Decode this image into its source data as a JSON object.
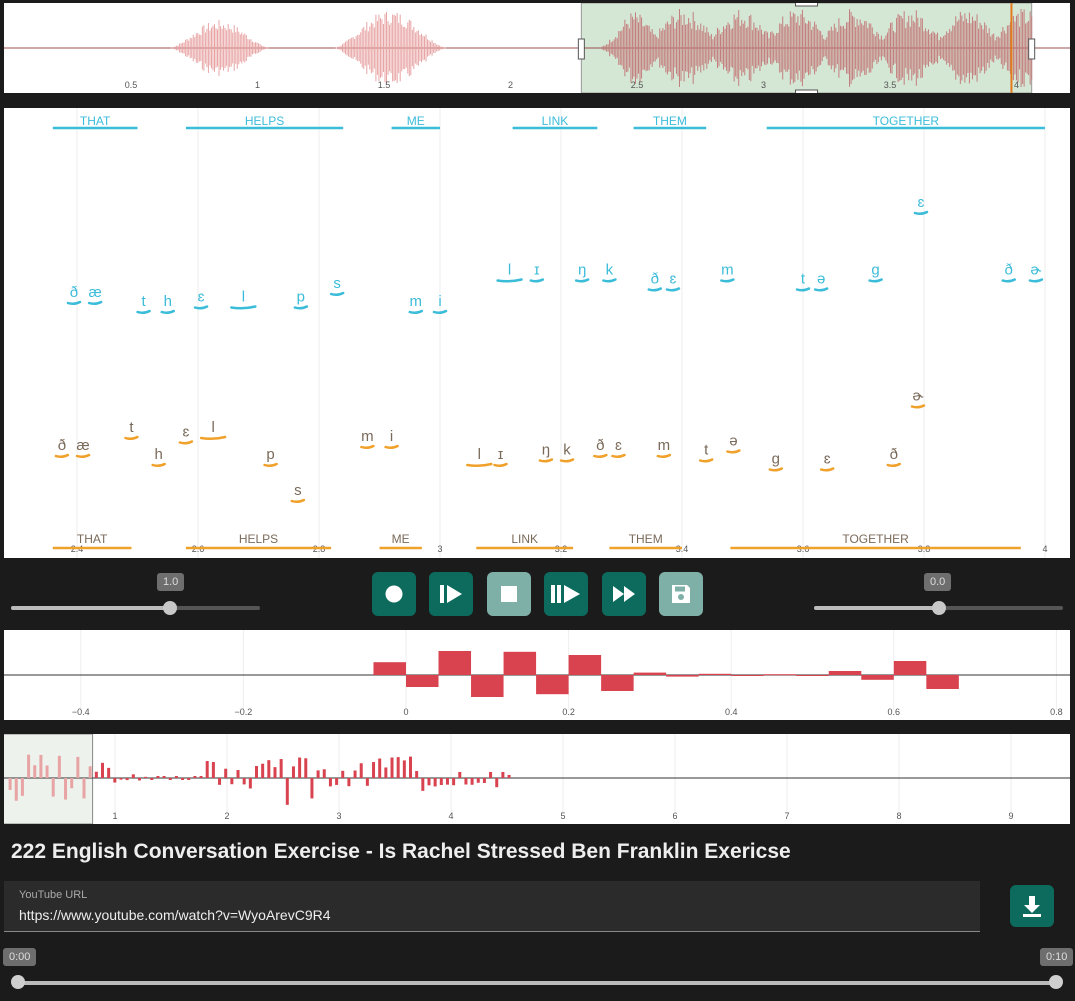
{
  "overview": {
    "ticks": [
      {
        "v": 0.5,
        "label": "0.5"
      },
      {
        "v": 1,
        "label": "1"
      },
      {
        "v": 1.5,
        "label": "1.5"
      },
      {
        "v": 2,
        "label": "2"
      },
      {
        "v": 2.5,
        "label": "2.5"
      },
      {
        "v": 3,
        "label": "3"
      },
      {
        "v": 3.5,
        "label": "3.5"
      },
      {
        "v": 4,
        "label": "4"
      }
    ],
    "selection": [
      2.28,
      4.06
    ],
    "playhead": 3.98,
    "colors": {
      "wave": "#e8a4a4",
      "wave_sel": "#c47e7e",
      "selection": "#d4e6d4",
      "playhead": "#e07a1a"
    }
  },
  "pitch": {
    "x_ticks": [
      {
        "v": 2.4,
        "label": "2.4"
      },
      {
        "v": 2.6,
        "label": "2.6"
      },
      {
        "v": 2.8,
        "label": "2.8"
      },
      {
        "v": 3.0,
        "label": "3"
      },
      {
        "v": 3.2,
        "label": "3.2"
      },
      {
        "v": 3.4,
        "label": "3.4"
      },
      {
        "v": 3.6,
        "label": "3.6"
      },
      {
        "v": 3.8,
        "label": "3.8"
      },
      {
        "v": 4.0,
        "label": "4"
      }
    ],
    "reference_words": [
      {
        "text": "THAT",
        "from": 2.36,
        "to": 2.5
      },
      {
        "text": "HELPS",
        "from": 2.58,
        "to": 2.84
      },
      {
        "text": "ME",
        "from": 2.92,
        "to": 3.0
      },
      {
        "text": "LINK",
        "from": 3.12,
        "to": 3.26
      },
      {
        "text": "THEM",
        "from": 3.32,
        "to": 3.44
      },
      {
        "text": "TOGETHER",
        "from": 3.54,
        "to": 4.0
      }
    ],
    "reference_phones": [
      {
        "text": "ð",
        "t": 2.395,
        "h": 0.58
      },
      {
        "text": "æ",
        "t": 2.43,
        "h": 0.58
      },
      {
        "text": "t",
        "t": 2.51,
        "h": 0.56
      },
      {
        "text": "h",
        "t": 2.55,
        "h": 0.56
      },
      {
        "text": "ɛ",
        "t": 2.605,
        "h": 0.57
      },
      {
        "text": "l",
        "t": 2.675,
        "h": 0.57
      },
      {
        "text": "p",
        "t": 2.77,
        "h": 0.57
      },
      {
        "text": "s",
        "t": 2.83,
        "h": 0.6
      },
      {
        "text": "m",
        "t": 2.96,
        "h": 0.56
      },
      {
        "text": "i",
        "t": 3.0,
        "h": 0.56
      },
      {
        "text": "l",
        "t": 3.115,
        "h": 0.63
      },
      {
        "text": "ɪ",
        "t": 3.16,
        "h": 0.63
      },
      {
        "text": "ŋ",
        "t": 3.235,
        "h": 0.63
      },
      {
        "text": "k",
        "t": 3.28,
        "h": 0.63
      },
      {
        "text": "ð",
        "t": 3.355,
        "h": 0.61
      },
      {
        "text": "ɛ",
        "t": 3.385,
        "h": 0.61
      },
      {
        "text": "m",
        "t": 3.475,
        "h": 0.63
      },
      {
        "text": "t",
        "t": 3.6,
        "h": 0.61
      },
      {
        "text": "ə",
        "t": 3.63,
        "h": 0.61
      },
      {
        "text": "ɡ",
        "t": 3.72,
        "h": 0.63
      },
      {
        "text": "ɛ",
        "t": 3.795,
        "h": 0.78
      },
      {
        "text": "ð",
        "t": 3.94,
        "h": 0.63
      },
      {
        "text": "ɚ",
        "t": 3.985,
        "h": 0.63
      }
    ],
    "user_words": [
      {
        "text": "THAT",
        "from": 2.36,
        "to": 2.49
      },
      {
        "text": "HELPS",
        "from": 2.58,
        "to": 2.82
      },
      {
        "text": "ME",
        "from": 2.9,
        "to": 2.97
      },
      {
        "text": "LINK",
        "from": 3.06,
        "to": 3.22
      },
      {
        "text": "THEM",
        "from": 3.28,
        "to": 3.4
      },
      {
        "text": "TOGETHER",
        "from": 3.48,
        "to": 3.96
      }
    ],
    "user_phones": [
      {
        "text": "ð",
        "t": 2.375,
        "h": 0.24
      },
      {
        "text": "æ",
        "t": 2.41,
        "h": 0.24
      },
      {
        "text": "t",
        "t": 2.49,
        "h": 0.28
      },
      {
        "text": "h",
        "t": 2.535,
        "h": 0.22
      },
      {
        "text": "ɛ",
        "t": 2.58,
        "h": 0.27
      },
      {
        "text": "l",
        "t": 2.625,
        "h": 0.28
      },
      {
        "text": "p",
        "t": 2.72,
        "h": 0.22
      },
      {
        "text": "s",
        "t": 2.765,
        "h": 0.14
      },
      {
        "text": "m",
        "t": 2.88,
        "h": 0.26
      },
      {
        "text": "i",
        "t": 2.92,
        "h": 0.26
      },
      {
        "text": "l",
        "t": 3.065,
        "h": 0.22
      },
      {
        "text": "ɪ",
        "t": 3.1,
        "h": 0.22
      },
      {
        "text": "ŋ",
        "t": 3.175,
        "h": 0.23
      },
      {
        "text": "k",
        "t": 3.21,
        "h": 0.23
      },
      {
        "text": "ð",
        "t": 3.265,
        "h": 0.24
      },
      {
        "text": "ɛ",
        "t": 3.295,
        "h": 0.24
      },
      {
        "text": "m",
        "t": 3.37,
        "h": 0.24
      },
      {
        "text": "t",
        "t": 3.44,
        "h": 0.23
      },
      {
        "text": "ə",
        "t": 3.485,
        "h": 0.25
      },
      {
        "text": "ɡ",
        "t": 3.555,
        "h": 0.21
      },
      {
        "text": "ɛ",
        "t": 3.64,
        "h": 0.21
      },
      {
        "text": "ð",
        "t": 3.75,
        "h": 0.22
      },
      {
        "text": "ɚ",
        "t": 3.79,
        "h": 0.35
      }
    ],
    "colors": {
      "reference": "#3bbcd9",
      "user": "#f0a12b"
    }
  },
  "controls": {
    "speed_value": "1.0",
    "speed_level": 0.64,
    "offset_value": "0.0",
    "offset_level": 0.5,
    "buttons": [
      {
        "name": "record-button",
        "icon": "record-icon",
        "state": "on"
      },
      {
        "name": "play-reference-button",
        "icon": "play-bar-icon",
        "state": "on"
      },
      {
        "name": "stop-button",
        "icon": "stop-icon",
        "state": "off"
      },
      {
        "name": "play-both-button",
        "icon": "double-play-bar-icon",
        "state": "on"
      },
      {
        "name": "fast-forward-button",
        "icon": "fast-forward-icon",
        "state": "on"
      },
      {
        "name": "save-button",
        "icon": "save-icon",
        "state": "off"
      }
    ]
  },
  "correlation": {
    "ticks": [
      {
        "v": -0.4,
        "label": "−0.4"
      },
      {
        "v": -0.2,
        "label": "−0.2"
      },
      {
        "v": 0,
        "label": "0"
      },
      {
        "v": 0.2,
        "label": "0.2"
      },
      {
        "v": 0.4,
        "label": "0.4"
      },
      {
        "v": 0.6,
        "label": "0.6"
      },
      {
        "v": 0.8,
        "label": "0.8"
      }
    ],
    "values": [
      0.32,
      -0.3,
      0.6,
      -0.55,
      0.58,
      -0.48,
      0.5,
      -0.4,
      0.06,
      -0.04,
      0.03,
      -0.02,
      0.02,
      -0.01,
      0.1,
      -0.12,
      0.35,
      -0.35
    ],
    "color": "#d9434f"
  },
  "dense": {
    "ticks": [
      {
        "v": 1,
        "label": "1"
      },
      {
        "v": 2,
        "label": "2"
      },
      {
        "v": 3,
        "label": "3"
      },
      {
        "v": 4,
        "label": "4"
      },
      {
        "v": 5,
        "label": "5"
      },
      {
        "v": 6,
        "label": "6"
      },
      {
        "v": 7,
        "label": "7"
      },
      {
        "v": 8,
        "label": "8"
      },
      {
        "v": 9,
        "label": "9"
      }
    ],
    "selection": [
      0,
      0.8
    ],
    "color": "#d9434f"
  },
  "video": {
    "title": "222 English Conversation Exercise - Is Rachel Stressed Ben Franklin Exericse",
    "url_label": "YouTube URL",
    "url": "https://www.youtube.com/watch?v=WyoArevC9R4",
    "start_label": "0:00",
    "end_label": "0:10"
  }
}
